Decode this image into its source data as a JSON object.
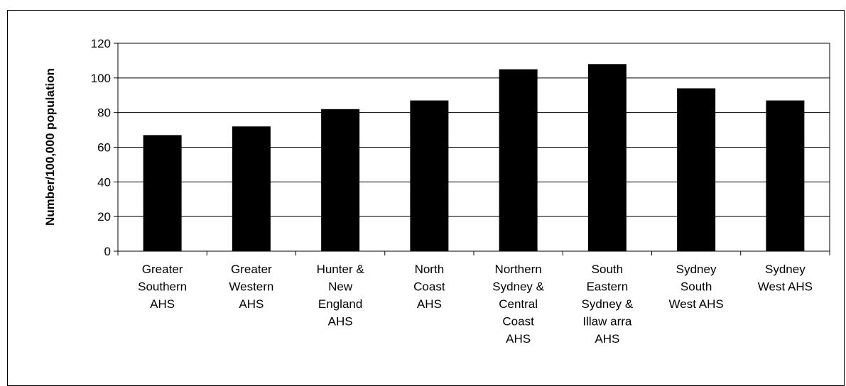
{
  "chart_data": {
    "type": "bar",
    "title": "",
    "xlabel": "",
    "ylabel": "Number/100,000 population",
    "ylim": [
      0,
      120
    ],
    "yticks": [
      0,
      20,
      40,
      60,
      80,
      100,
      120
    ],
    "grid": true,
    "legend": "none",
    "bar_color": "#000000",
    "categories": [
      [
        "Greater",
        "Southern",
        "AHS"
      ],
      [
        "Greater",
        "Western",
        "AHS"
      ],
      [
        "Hunter &",
        "New",
        "England",
        "AHS"
      ],
      [
        "North",
        "Coast",
        "AHS"
      ],
      [
        "Northern",
        "Sydney &",
        "Central",
        "Coast",
        "AHS"
      ],
      [
        "South",
        "Eastern",
        "Sydney &",
        "Illaw arra",
        "AHS"
      ],
      [
        "Sydney",
        "South",
        "West AHS"
      ],
      [
        "Sydney",
        "West AHS"
      ]
    ],
    "values": [
      67,
      72,
      82,
      87,
      105,
      108,
      94,
      87
    ]
  }
}
